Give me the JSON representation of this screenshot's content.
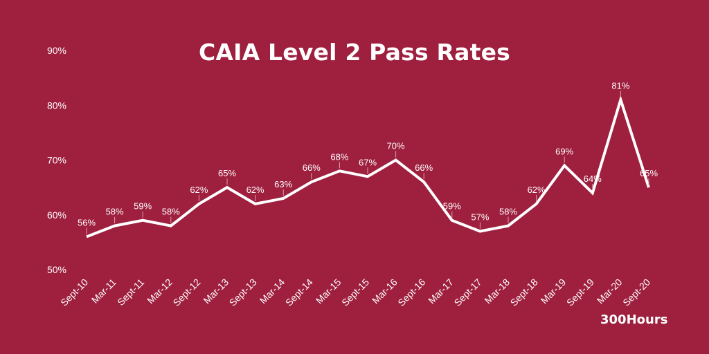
{
  "chart_data": {
    "type": "line",
    "title": "CAIA Level 2 Pass Rates",
    "xlabel": "",
    "ylabel": "",
    "categories": [
      "Sept-10",
      "Mar-11",
      "Sept-11",
      "Mar-12",
      "Sept-12",
      "Mar-13",
      "Sept-13",
      "Mar-14",
      "Sept-14",
      "Mar-15",
      "Sept-15",
      "Mar-16",
      "Sept-16",
      "Mar-17",
      "Sept-17",
      "Mar-18",
      "Sept-18",
      "Mar-19",
      "Sept-19",
      "Mar-20",
      "Sept-20"
    ],
    "series": [
      {
        "values": [
          56,
          58,
          59,
          58,
          62,
          65,
          62,
          63,
          66,
          68,
          67,
          70,
          66,
          59,
          57,
          58,
          62,
          69,
          64,
          81,
          65
        ]
      }
    ],
    "value_labels": [
      "56%",
      "58%",
      "59%",
      "58%",
      "62%",
      "65%",
      "62%",
      "63%",
      "66%",
      "68%",
      "67%",
      "70%",
      "66%",
      "59%",
      "57%",
      "58%",
      "62%",
      "69%",
      "64%",
      "81%",
      "65%"
    ],
    "ylim": [
      50,
      90
    ],
    "yticks": [
      50,
      60,
      70,
      80,
      90
    ],
    "ytick_labels": [
      "50%",
      "60%",
      "70%",
      "80%",
      "90%"
    ],
    "grid": false,
    "legend": "none",
    "line_color": "#ffffff",
    "background_color": "#9e1f3e"
  },
  "brand": "300Hours"
}
